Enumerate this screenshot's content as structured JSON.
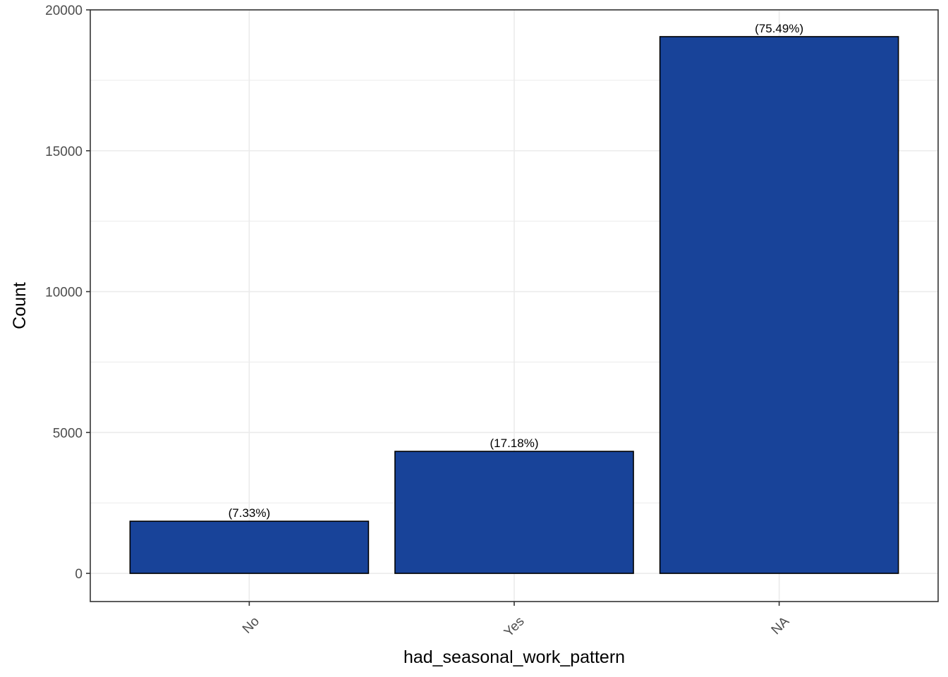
{
  "chart_data": {
    "type": "bar",
    "categories": [
      "No",
      "Yes",
      "NA"
    ],
    "values": [
      1850,
      4330,
      19050
    ],
    "data_labels": [
      "(7.33%)",
      "(17.18%)",
      "(75.49%)"
    ],
    "xlabel": "had_seasonal_work_pattern",
    "ylabel": "Count",
    "ylim": [
      -1000,
      20000
    ],
    "y_ticks": [
      0,
      5000,
      10000,
      15000,
      20000
    ],
    "y_tick_labels": [
      "0",
      "5000",
      "10000",
      "15000",
      "20000"
    ],
    "grid": true,
    "legend": "none",
    "colors": {
      "bar_fill": "#184399",
      "bar_stroke": "#000000",
      "grid": "#ebebeb",
      "panel_border": "#333333",
      "tick_text": "#4d4d4d"
    }
  }
}
